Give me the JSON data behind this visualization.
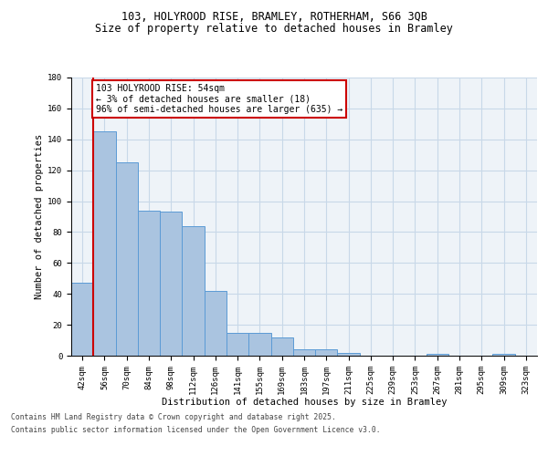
{
  "title_line1": "103, HOLYROOD RISE, BRAMLEY, ROTHERHAM, S66 3QB",
  "title_line2": "Size of property relative to detached houses in Bramley",
  "xlabel": "Distribution of detached houses by size in Bramley",
  "ylabel": "Number of detached properties",
  "categories": [
    "42sqm",
    "56sqm",
    "70sqm",
    "84sqm",
    "98sqm",
    "112sqm",
    "126sqm",
    "141sqm",
    "155sqm",
    "169sqm",
    "183sqm",
    "197sqm",
    "211sqm",
    "225sqm",
    "239sqm",
    "253sqm",
    "267sqm",
    "281sqm",
    "295sqm",
    "309sqm",
    "323sqm"
  ],
  "values": [
    47,
    145,
    125,
    94,
    93,
    84,
    42,
    15,
    15,
    12,
    4,
    4,
    2,
    0,
    0,
    0,
    1,
    0,
    0,
    1,
    0
  ],
  "bar_color": "#aac4e0",
  "bar_edge_color": "#5b9bd5",
  "grid_color": "#c8d8e8",
  "background_color": "#eef3f8",
  "annotation_box_color": "#cc0000",
  "vline_color": "#cc0000",
  "annotation_text_line1": "103 HOLYROOD RISE: 54sqm",
  "annotation_text_line2": "← 3% of detached houses are smaller (18)",
  "annotation_text_line3": "96% of semi-detached houses are larger (635) →",
  "footer_line1": "Contains HM Land Registry data © Crown copyright and database right 2025.",
  "footer_line2": "Contains public sector information licensed under the Open Government Licence v3.0.",
  "ylim": [
    0,
    180
  ],
  "yticks": [
    0,
    20,
    40,
    60,
    80,
    100,
    120,
    140,
    160,
    180
  ],
  "title_fontsize": 8.5,
  "axis_label_fontsize": 7.5,
  "tick_fontsize": 6.5,
  "annotation_fontsize": 7,
  "footer_fontsize": 5.8
}
